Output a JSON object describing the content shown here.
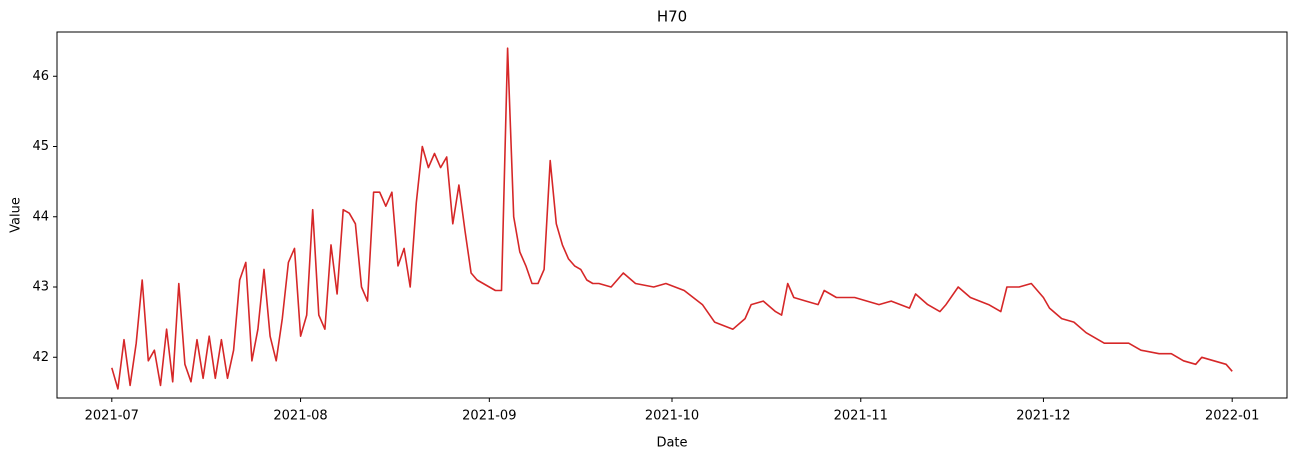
{
  "chart_data": {
    "type": "line",
    "title": "H70",
    "x_label": "Date",
    "y_label": "Value",
    "color": "#d62728",
    "x": [
      "2021-07-01",
      "2021-07-02",
      "2021-07-03",
      "2021-07-04",
      "2021-07-05",
      "2021-07-06",
      "2021-07-07",
      "2021-07-08",
      "2021-07-09",
      "2021-07-10",
      "2021-07-11",
      "2021-07-12",
      "2021-07-13",
      "2021-07-14",
      "2021-07-15",
      "2021-07-16",
      "2021-07-17",
      "2021-07-18",
      "2021-07-19",
      "2021-07-20",
      "2021-07-21",
      "2021-07-22",
      "2021-07-23",
      "2021-07-24",
      "2021-07-25",
      "2021-07-26",
      "2021-07-27",
      "2021-07-28",
      "2021-07-29",
      "2021-07-30",
      "2021-07-31",
      "2021-08-01",
      "2021-08-02",
      "2021-08-03",
      "2021-08-04",
      "2021-08-05",
      "2021-08-06",
      "2021-08-07",
      "2021-08-08",
      "2021-08-09",
      "2021-08-10",
      "2021-08-11",
      "2021-08-12",
      "2021-08-13",
      "2021-08-14",
      "2021-08-15",
      "2021-08-16",
      "2021-08-17",
      "2021-08-18",
      "2021-08-19",
      "2021-08-20",
      "2021-08-21",
      "2021-08-22",
      "2021-08-23",
      "2021-08-24",
      "2021-08-25",
      "2021-08-26",
      "2021-08-27",
      "2021-08-28",
      "2021-08-29",
      "2021-08-30",
      "2021-08-31",
      "2021-09-01",
      "2021-09-02",
      "2021-09-03",
      "2021-09-04",
      "2021-09-05",
      "2021-09-06",
      "2021-09-07",
      "2021-09-08",
      "2021-09-09",
      "2021-09-10",
      "2021-09-11",
      "2021-09-12",
      "2021-09-13",
      "2021-09-14",
      "2021-09-15",
      "2021-09-16",
      "2021-09-17",
      "2021-09-18",
      "2021-09-19",
      "2021-09-21",
      "2021-09-23",
      "2021-09-25",
      "2021-09-28",
      "2021-09-30",
      "2021-10-03",
      "2021-10-06",
      "2021-10-08",
      "2021-10-11",
      "2021-10-13",
      "2021-10-14",
      "2021-10-16",
      "2021-10-18",
      "2021-10-19",
      "2021-10-20",
      "2021-10-21",
      "2021-10-23",
      "2021-10-25",
      "2021-10-26",
      "2021-10-28",
      "2021-10-31",
      "2021-11-04",
      "2021-11-06",
      "2021-11-09",
      "2021-11-10",
      "2021-11-12",
      "2021-11-14",
      "2021-11-15",
      "2021-11-17",
      "2021-11-19",
      "2021-11-22",
      "2021-11-24",
      "2021-11-25",
      "2021-11-27",
      "2021-11-29",
      "2021-12-01",
      "2021-12-02",
      "2021-12-04",
      "2021-12-06",
      "2021-12-08",
      "2021-12-10",
      "2021-12-11",
      "2021-12-15",
      "2021-12-17",
      "2021-12-20",
      "2021-12-22",
      "2021-12-24",
      "2021-12-26",
      "2021-12-27",
      "2021-12-29",
      "2021-12-31",
      "2022-01-01"
    ],
    "values": [
      41.85,
      41.55,
      42.25,
      41.6,
      42.2,
      43.1,
      41.95,
      42.1,
      41.6,
      42.4,
      41.65,
      43.05,
      41.9,
      41.65,
      42.25,
      41.7,
      42.3,
      41.7,
      42.25,
      41.7,
      42.1,
      43.1,
      43.35,
      41.95,
      42.4,
      43.25,
      42.3,
      41.95,
      42.55,
      43.35,
      43.55,
      42.3,
      42.6,
      44.1,
      42.6,
      42.4,
      43.6,
      42.9,
      44.1,
      44.05,
      43.9,
      43.0,
      42.8,
      44.35,
      44.35,
      44.15,
      44.35,
      43.3,
      43.55,
      43.0,
      44.2,
      45.0,
      44.7,
      44.9,
      44.7,
      44.85,
      43.9,
      44.45,
      43.8,
      43.2,
      43.1,
      43.05,
      43.0,
      42.95,
      42.95,
      46.4,
      44.0,
      43.5,
      43.3,
      43.05,
      43.05,
      43.25,
      44.8,
      43.9,
      43.6,
      43.4,
      43.3,
      43.25,
      43.1,
      43.05,
      43.05,
      43.0,
      43.2,
      43.05,
      43.0,
      43.05,
      42.95,
      42.75,
      42.5,
      42.4,
      42.55,
      42.75,
      42.8,
      42.65,
      42.6,
      43.05,
      42.85,
      42.8,
      42.75,
      42.95,
      42.85,
      42.85,
      42.75,
      42.8,
      42.7,
      42.9,
      42.75,
      42.65,
      42.75,
      43.0,
      42.85,
      42.75,
      42.65,
      43.0,
      43.0,
      43.05,
      42.85,
      42.7,
      42.55,
      42.5,
      42.35,
      42.25,
      42.2,
      42.2,
      42.1,
      42.05,
      42.05,
      41.95,
      41.9,
      42.0,
      41.95,
      41.9,
      41.8
    ],
    "xlim": [
      "2021-06-22",
      "2022-01-10"
    ],
    "xticks": [
      {
        "value": "2021-07-01",
        "label": "2021-07"
      },
      {
        "value": "2021-08-01",
        "label": "2021-08"
      },
      {
        "value": "2021-09-01",
        "label": "2021-09"
      },
      {
        "value": "2021-10-01",
        "label": "2021-10"
      },
      {
        "value": "2021-11-01",
        "label": "2021-11"
      },
      {
        "value": "2021-12-01",
        "label": "2021-12"
      },
      {
        "value": "2022-01-01",
        "label": "2022-01"
      }
    ],
    "ylim": [
      41.42,
      46.63
    ],
    "yticks": [
      42,
      43,
      44,
      45,
      46
    ],
    "grid": false
  }
}
